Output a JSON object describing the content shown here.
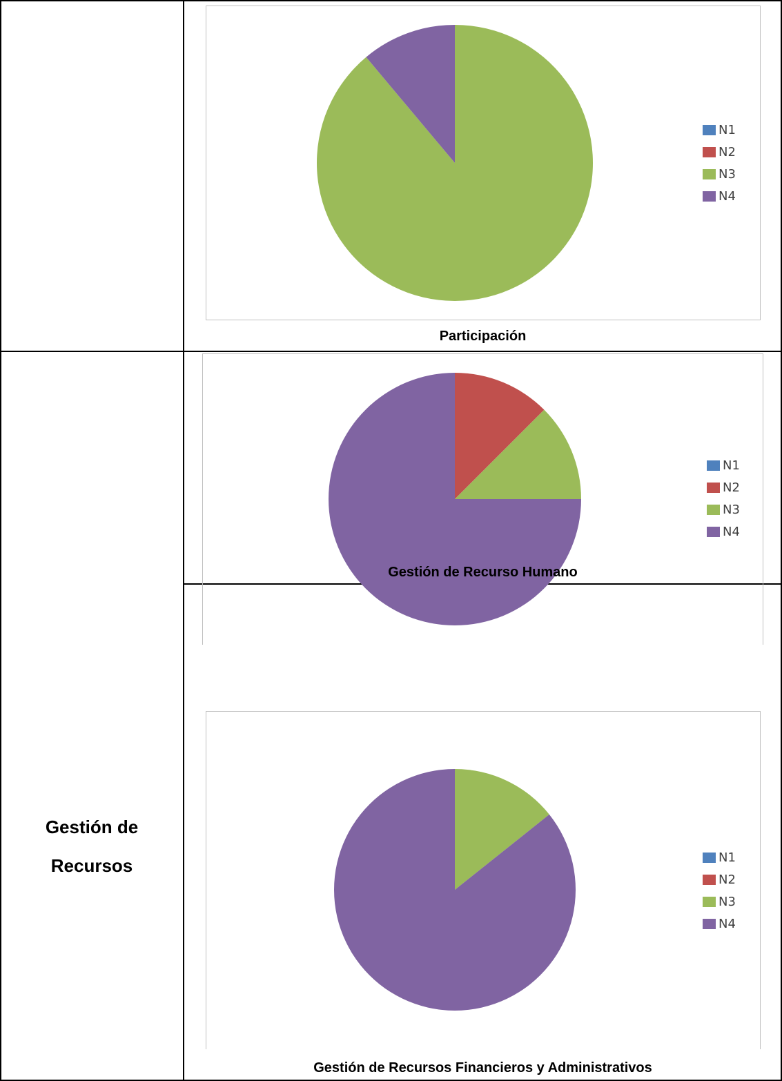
{
  "colors": {
    "N1": "#4f81bd",
    "N2": "#c0504d",
    "N3": "#9bbb59",
    "N4": "#8064a2"
  },
  "side_label": {
    "line1": "Gestión de",
    "line2": "Recursos"
  },
  "chart_data": [
    {
      "type": "pie",
      "title": "Participación",
      "categories": [
        "N1",
        "N2",
        "N3",
        "N4"
      ],
      "values": [
        0,
        0,
        8,
        1
      ],
      "legend_position": "right"
    },
    {
      "type": "pie",
      "title": "Gestión de Recurso Humano",
      "categories": [
        "N1",
        "N2",
        "N3",
        "N4"
      ],
      "values": [
        0,
        1,
        1,
        6
      ],
      "legend_position": "right"
    },
    {
      "type": "pie",
      "title": "Gestión de Recursos Financieros y Administrativos",
      "categories": [
        "N1",
        "N2",
        "N3",
        "N4"
      ],
      "values": [
        0,
        0,
        1,
        6
      ],
      "legend_position": "right"
    }
  ]
}
